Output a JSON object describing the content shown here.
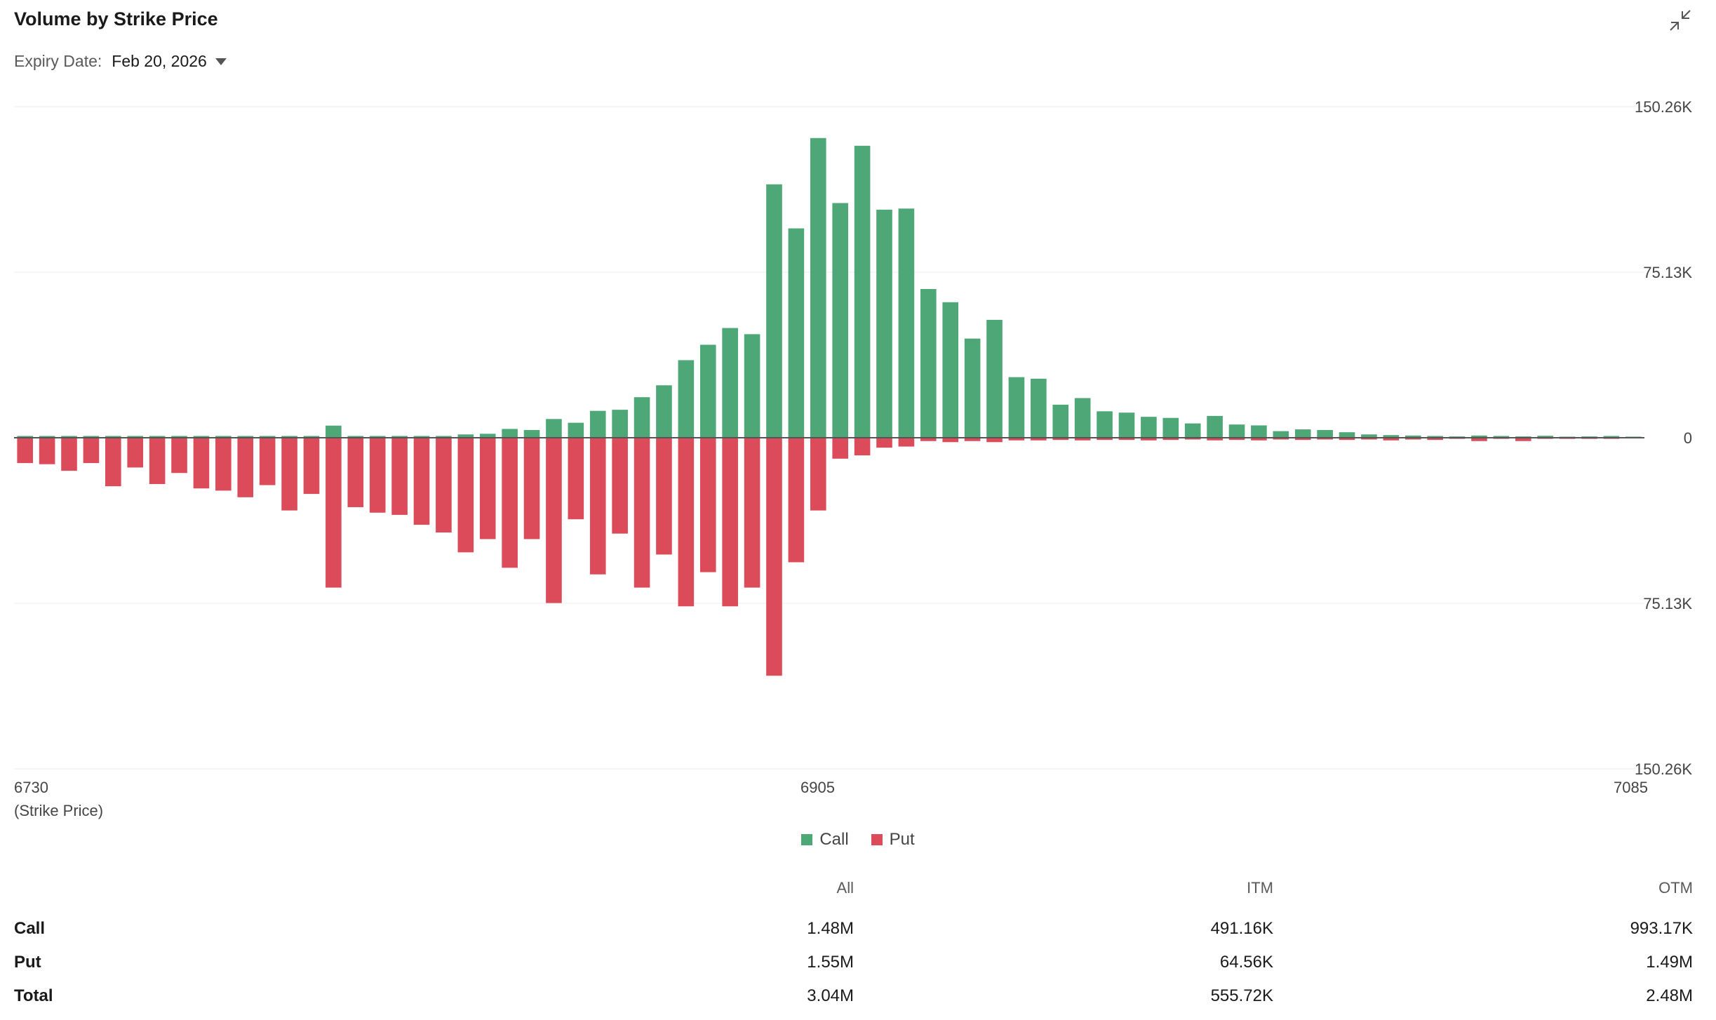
{
  "header": {
    "title": "Volume by Strike Price",
    "expiry_label": "Expiry Date:",
    "expiry_value": "Feb 20, 2026"
  },
  "colors": {
    "call": "#4ea777",
    "put": "#dc4b5a",
    "grid": "#ececec",
    "zero": "#555555"
  },
  "icons": {
    "collapse": "collapse-arrows-icon",
    "dropdown": "caret-down-icon"
  },
  "chart_data": {
    "type": "bar",
    "xlabel": "(Strike Price)",
    "x_ticks": [
      "6730",
      "6905",
      "7085"
    ],
    "y_ticks_labels": [
      "150.26K",
      "75.13K",
      "0",
      "75.13K",
      "150.26K"
    ],
    "ylim": [
      -150260,
      150260
    ],
    "grid": true,
    "legend_position": "bottom",
    "strike_start": 6730,
    "strike_step": 5,
    "series": [
      {
        "name": "Call",
        "values": [
          800,
          800,
          800,
          800,
          800,
          800,
          800,
          800,
          800,
          800,
          800,
          800,
          800,
          800,
          5500,
          800,
          800,
          800,
          800,
          800,
          1500,
          1800,
          4000,
          3500,
          8500,
          6800,
          12200,
          12700,
          18400,
          23800,
          35200,
          42200,
          49800,
          47000,
          115000,
          95000,
          136000,
          106500,
          132500,
          103500,
          104000,
          67500,
          61500,
          45000,
          53500,
          27500,
          26800,
          15000,
          18000,
          12000,
          11400,
          9500,
          9000,
          6500,
          9900,
          6000,
          5600,
          3000,
          3800,
          3500,
          2500,
          1500,
          1200,
          1000,
          800,
          600,
          1000,
          800,
          600,
          900,
          500,
          600,
          800,
          500
        ]
      },
      {
        "name": "Put",
        "values": [
          -11500,
          -12000,
          -15000,
          -11500,
          -22000,
          -13500,
          -21000,
          -16000,
          -23000,
          -24000,
          -27000,
          -21500,
          -33000,
          -25500,
          -68000,
          -31500,
          -34000,
          -35000,
          -39500,
          -43000,
          -52000,
          -46000,
          -59000,
          -46000,
          -75000,
          -37000,
          -62000,
          -43500,
          -68000,
          -53000,
          -76500,
          -61000,
          -76500,
          -68000,
          -108000,
          -56500,
          -33000,
          -9500,
          -8000,
          -4500,
          -4000,
          -1500,
          -2000,
          -1500,
          -2000,
          -1200,
          -1200,
          -1000,
          -1200,
          -1000,
          -1000,
          -1200,
          -1000,
          -800,
          -1200,
          -1000,
          -1200,
          -800,
          -1000,
          -800,
          -1000,
          -800,
          -1200,
          -800,
          -1000,
          -500,
          -1500,
          -500,
          -1500,
          -500,
          -500,
          -500,
          -500,
          -300
        ]
      }
    ]
  },
  "summary": {
    "headers": [
      "All",
      "ITM",
      "OTM"
    ],
    "rows": [
      {
        "label": "Call",
        "all": "1.48M",
        "itm": "491.16K",
        "otm": "993.17K"
      },
      {
        "label": "Put",
        "all": "1.55M",
        "itm": "64.56K",
        "otm": "1.49M"
      },
      {
        "label": "Total",
        "all": "3.04M",
        "itm": "555.72K",
        "otm": "2.48M"
      }
    ]
  }
}
